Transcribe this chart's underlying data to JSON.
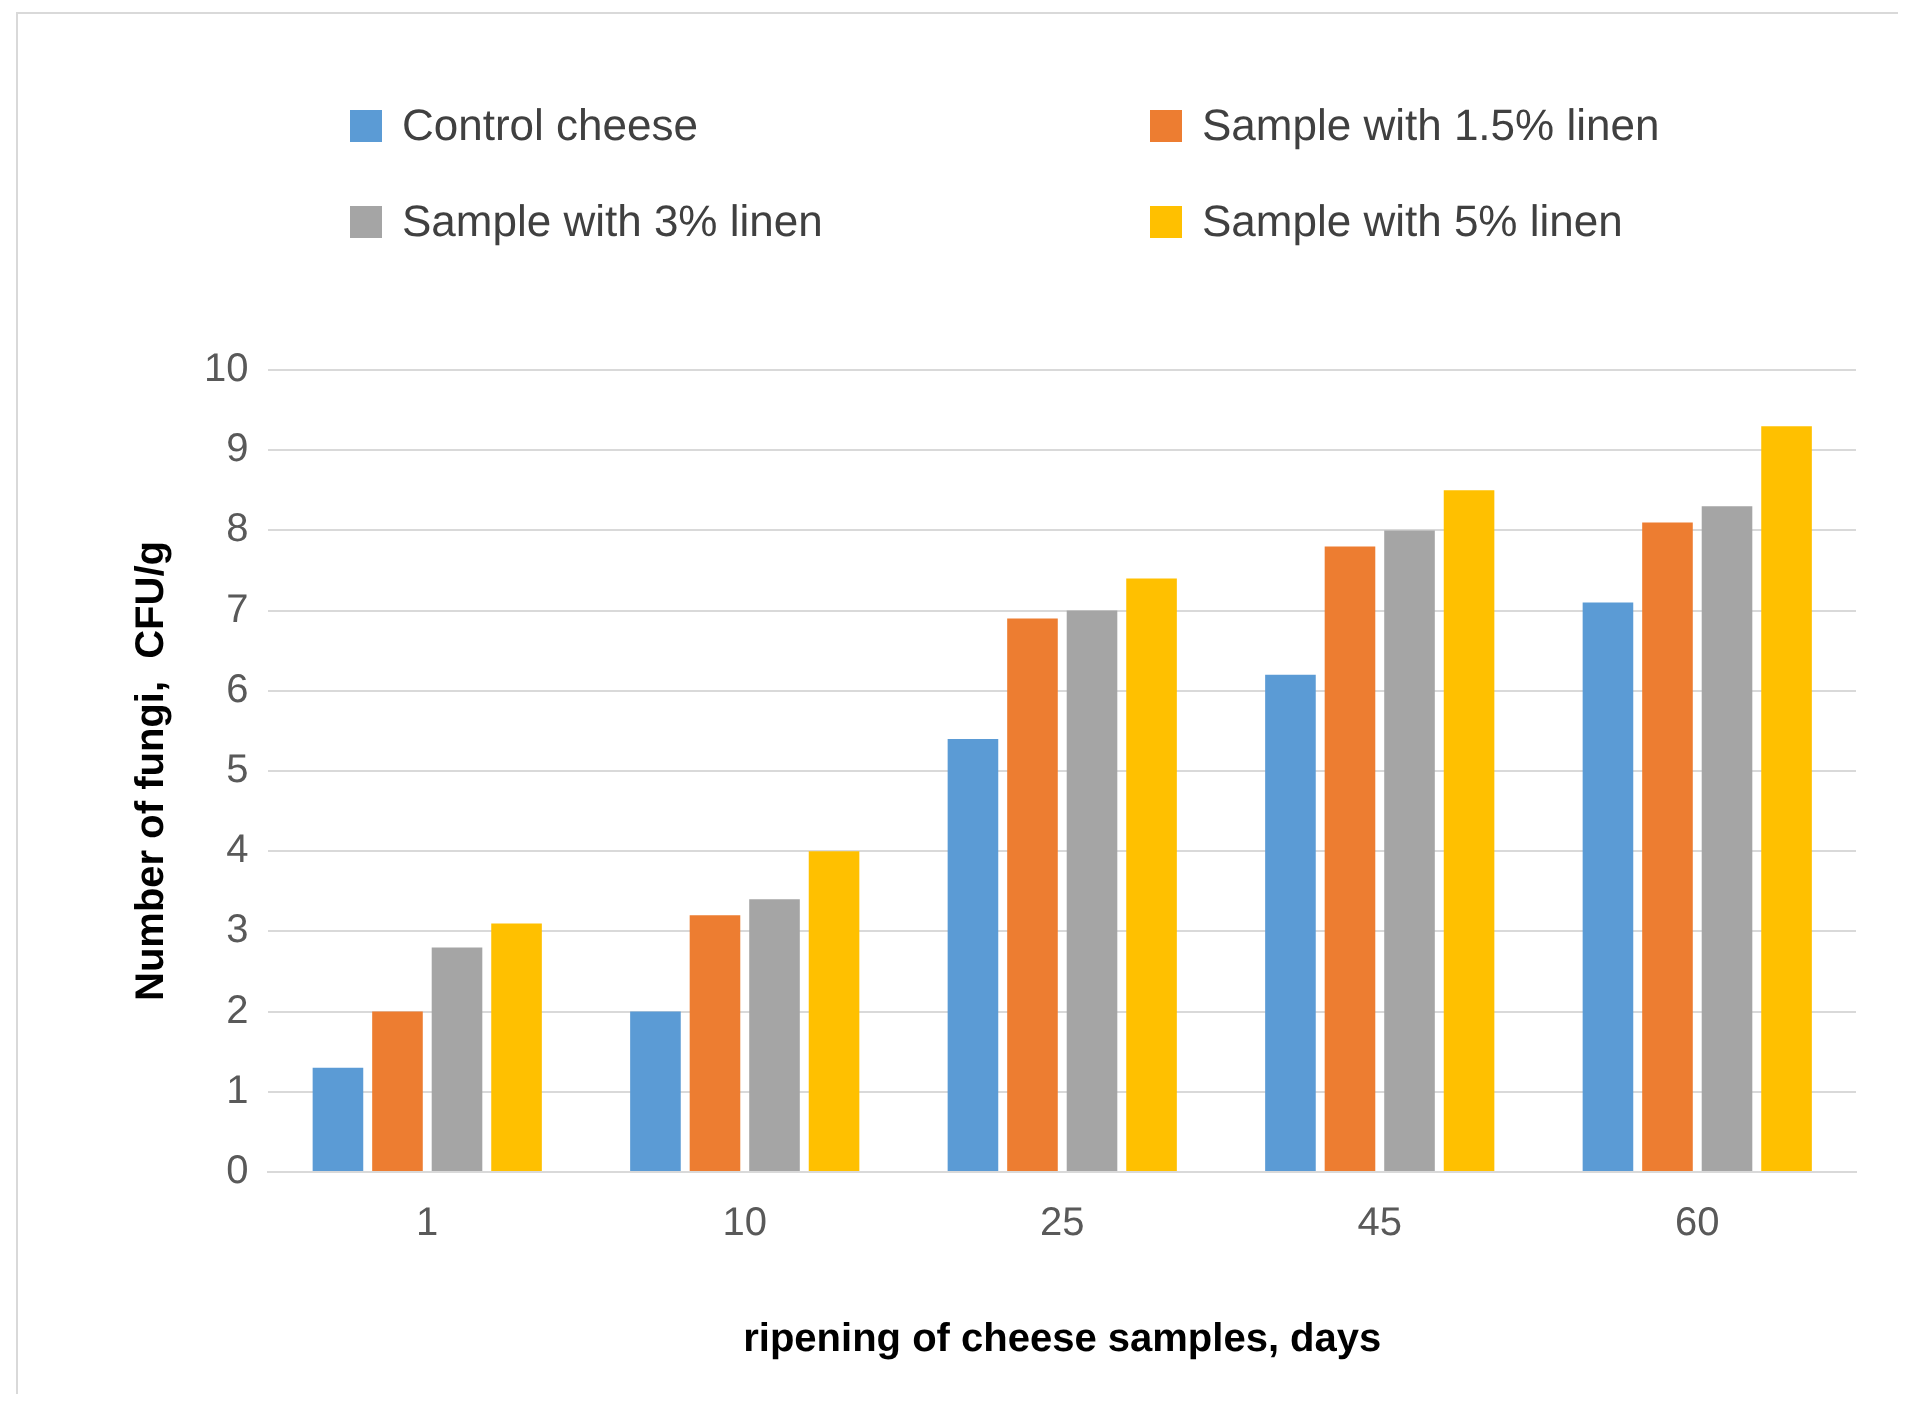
{
  "chart_data": {
    "type": "bar",
    "xlabel": "ripening of cheese samples, days",
    "ylabel": "Number of fungi,  CFU/g",
    "categories": [
      "1",
      "10",
      "25",
      "45",
      "60"
    ],
    "series": [
      {
        "name": "Control cheese",
        "color": "#5b9bd5",
        "values": [
          1.3,
          2.0,
          5.4,
          6.2,
          7.1
        ]
      },
      {
        "name": "Sample with 1.5% linen",
        "color": "#ed7d31",
        "values": [
          2.0,
          3.2,
          6.9,
          7.8,
          8.1
        ]
      },
      {
        "name": "Sample with 3% linen",
        "color": "#a5a5a5",
        "values": [
          2.8,
          3.4,
          7.0,
          8.0,
          8.3
        ]
      },
      {
        "name": "Sample with 5% linen",
        "color": "#ffc000",
        "values": [
          3.1,
          4.0,
          7.4,
          8.5,
          9.3
        ]
      }
    ],
    "ylim": [
      0,
      10
    ],
    "yticks": [
      0,
      1,
      2,
      3,
      4,
      5,
      6,
      7,
      8,
      9,
      10
    ],
    "grid": "y",
    "legend": "top"
  }
}
